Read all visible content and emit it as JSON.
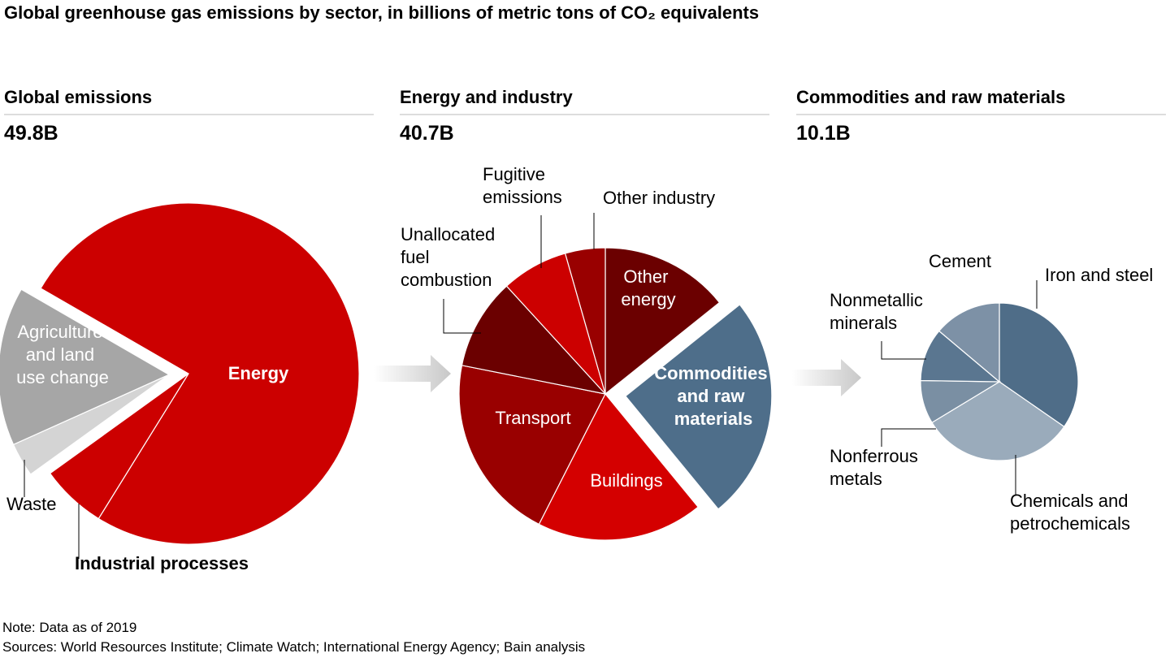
{
  "title": "Global greenhouse gas emissions by sector, in billions of metric tons of CO₂ equivalents",
  "note": "Note: Data as of 2019",
  "sources": "Sources: World Resources Institute; Climate Watch; International Energy Agency; Bain analysis",
  "chart_data": [
    {
      "type": "pie",
      "title": "Global emissions",
      "total": "49.8B",
      "categories": [
        "Energy",
        "Industrial processes",
        "Waste",
        "Agriculture and land use change"
      ],
      "values": [
        37.6,
        3.1,
        1.6,
        7.5
      ],
      "colors": [
        "#cc0000",
        "#cc0000",
        "#d4d4d4",
        "#a6a6a6"
      ]
    },
    {
      "type": "pie",
      "title": "Energy and industry",
      "total": "40.7B",
      "categories": [
        "Other energy",
        "Commodities and raw materials",
        "Buildings",
        "Transport",
        "Unallocated fuel combustion",
        "Fugitive emissions",
        "Other industry"
      ],
      "values": [
        5.8,
        10.1,
        7.5,
        8.4,
        4.1,
        3.0,
        1.8
      ],
      "colors": [
        "#6b0000",
        "#4e6e8a",
        "#d40000",
        "#990000",
        "#6b0000",
        "#cc0000",
        "#990000"
      ]
    },
    {
      "type": "pie",
      "title": "Commodities and raw materials",
      "total": "10.1B",
      "categories": [
        "Iron and steel",
        "Chemicals and petrochemicals",
        "Nonferrous metals",
        "Nonmetallic minerals",
        "Cement"
      ],
      "values": [
        3.5,
        3.2,
        0.9,
        1.1,
        1.4
      ],
      "colors": [
        "#4f6d88",
        "#9aabbb",
        "#7a8fa3",
        "#5a7690",
        "#7d91a6"
      ]
    }
  ]
}
